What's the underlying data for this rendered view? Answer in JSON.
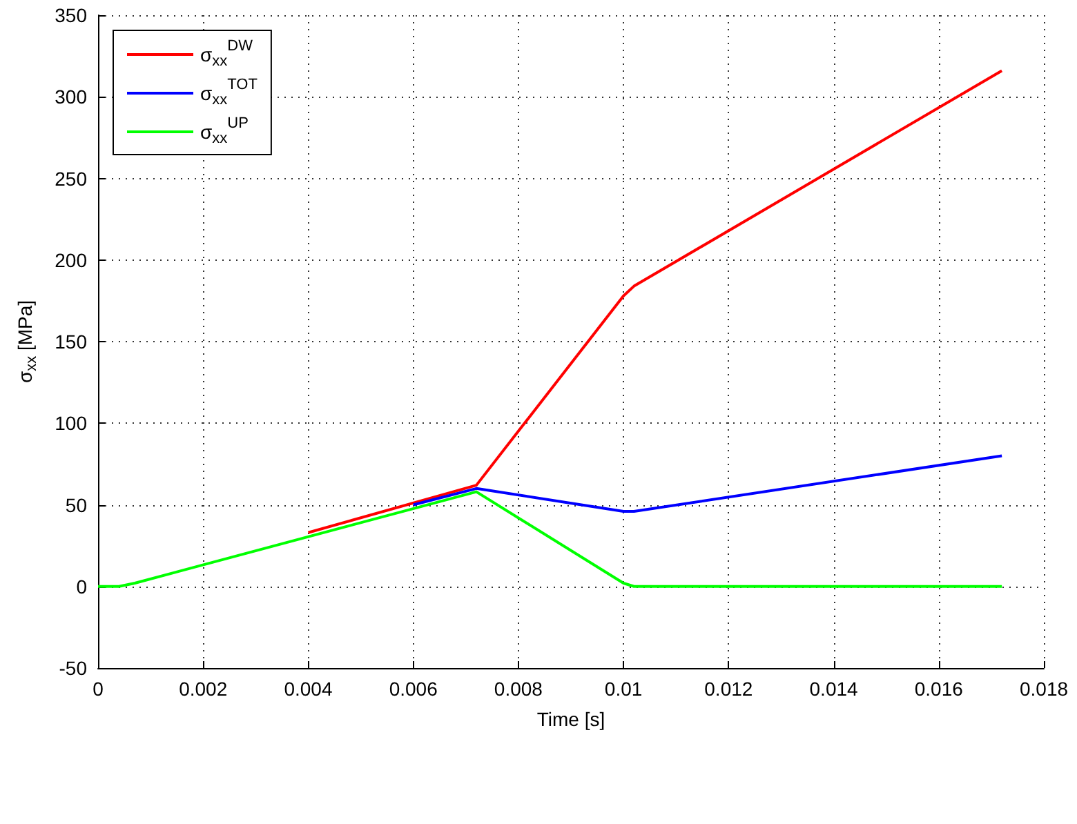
{
  "chart_data": {
    "type": "line",
    "xlabel": "Time [s]",
    "ylabel": "σ$_{xx}$ [MPa]",
    "xlim": [
      0,
      0.018
    ],
    "xticks": [
      0,
      0.002,
      0.004,
      0.006,
      0.008,
      0.01,
      0.012,
      0.014,
      0.016,
      0.018
    ],
    "ylim": [
      -50,
      350
    ],
    "yticks": [
      -50,
      0,
      50,
      100,
      150,
      200,
      250,
      300,
      350
    ],
    "grid": true,
    "legend": "top left",
    "marker": "none",
    "line_style": "solid",
    "series": [
      {
        "name": "σ$_{xx}$$^{DW}$",
        "color": "#ff0000",
        "x": [
          0.004,
          0.0072,
          0.01,
          0.0102,
          0.0172
        ],
        "values": [
          33,
          62,
          178,
          184,
          316
        ]
      },
      {
        "name": "σ$_{xx}$$^{TOT}$",
        "color": "#0000ff",
        "x": [
          0.006,
          0.0072,
          0.01,
          0.0102,
          0.0172
        ],
        "values": [
          50,
          60,
          46,
          46,
          80
        ]
      },
      {
        "name": "σ$_{xx}$$^{UP}$",
        "color": "#00ff00",
        "x": [
          0,
          0.0004,
          0.0007,
          0.0072,
          0.01,
          0.0102,
          0.0172
        ],
        "values": [
          0,
          0,
          2,
          58,
          2,
          0,
          0
        ]
      }
    ]
  }
}
